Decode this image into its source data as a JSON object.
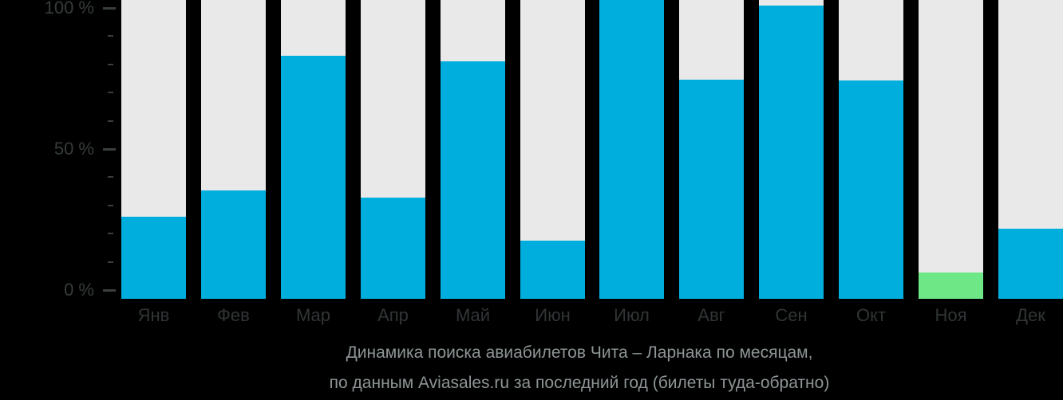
{
  "chart_data": {
    "type": "bar",
    "title": "Динамика поиска авиабилетов Чита – Ларнака по месяцам,",
    "subtitle": "по данным Aviasales.ru за последний год (билеты туда-обратно)",
    "categories": [
      "Янв",
      "Фев",
      "Мар",
      "Апр",
      "Май",
      "Июн",
      "Июл",
      "Авг",
      "Сен",
      "Окт",
      "Ноя",
      "Дек"
    ],
    "values": [
      27.5,
      36.3,
      81.3,
      33.9,
      79.5,
      19.5,
      100,
      73.3,
      98.1,
      73.1,
      8.8,
      23.5
    ],
    "unit": "%",
    "ylim": [
      0,
      100
    ],
    "y_axis_labels": [
      {
        "value": 100,
        "text": "100 %"
      },
      {
        "value": 50,
        "text": "50 %"
      },
      {
        "value": 0,
        "text": "0 %"
      }
    ],
    "minor_tick_step": 10,
    "grid": false,
    "legend": null,
    "highlighted_category": "Ноя",
    "colors": {
      "bar": "#00aedd",
      "highlight": "#6ee887",
      "track": "#e9e9e9",
      "background": "#000000",
      "axis_text": "#363b3c",
      "axis_tick": "#3a3e3f",
      "month_text": "#313536",
      "caption_text": "#8e9596"
    }
  }
}
